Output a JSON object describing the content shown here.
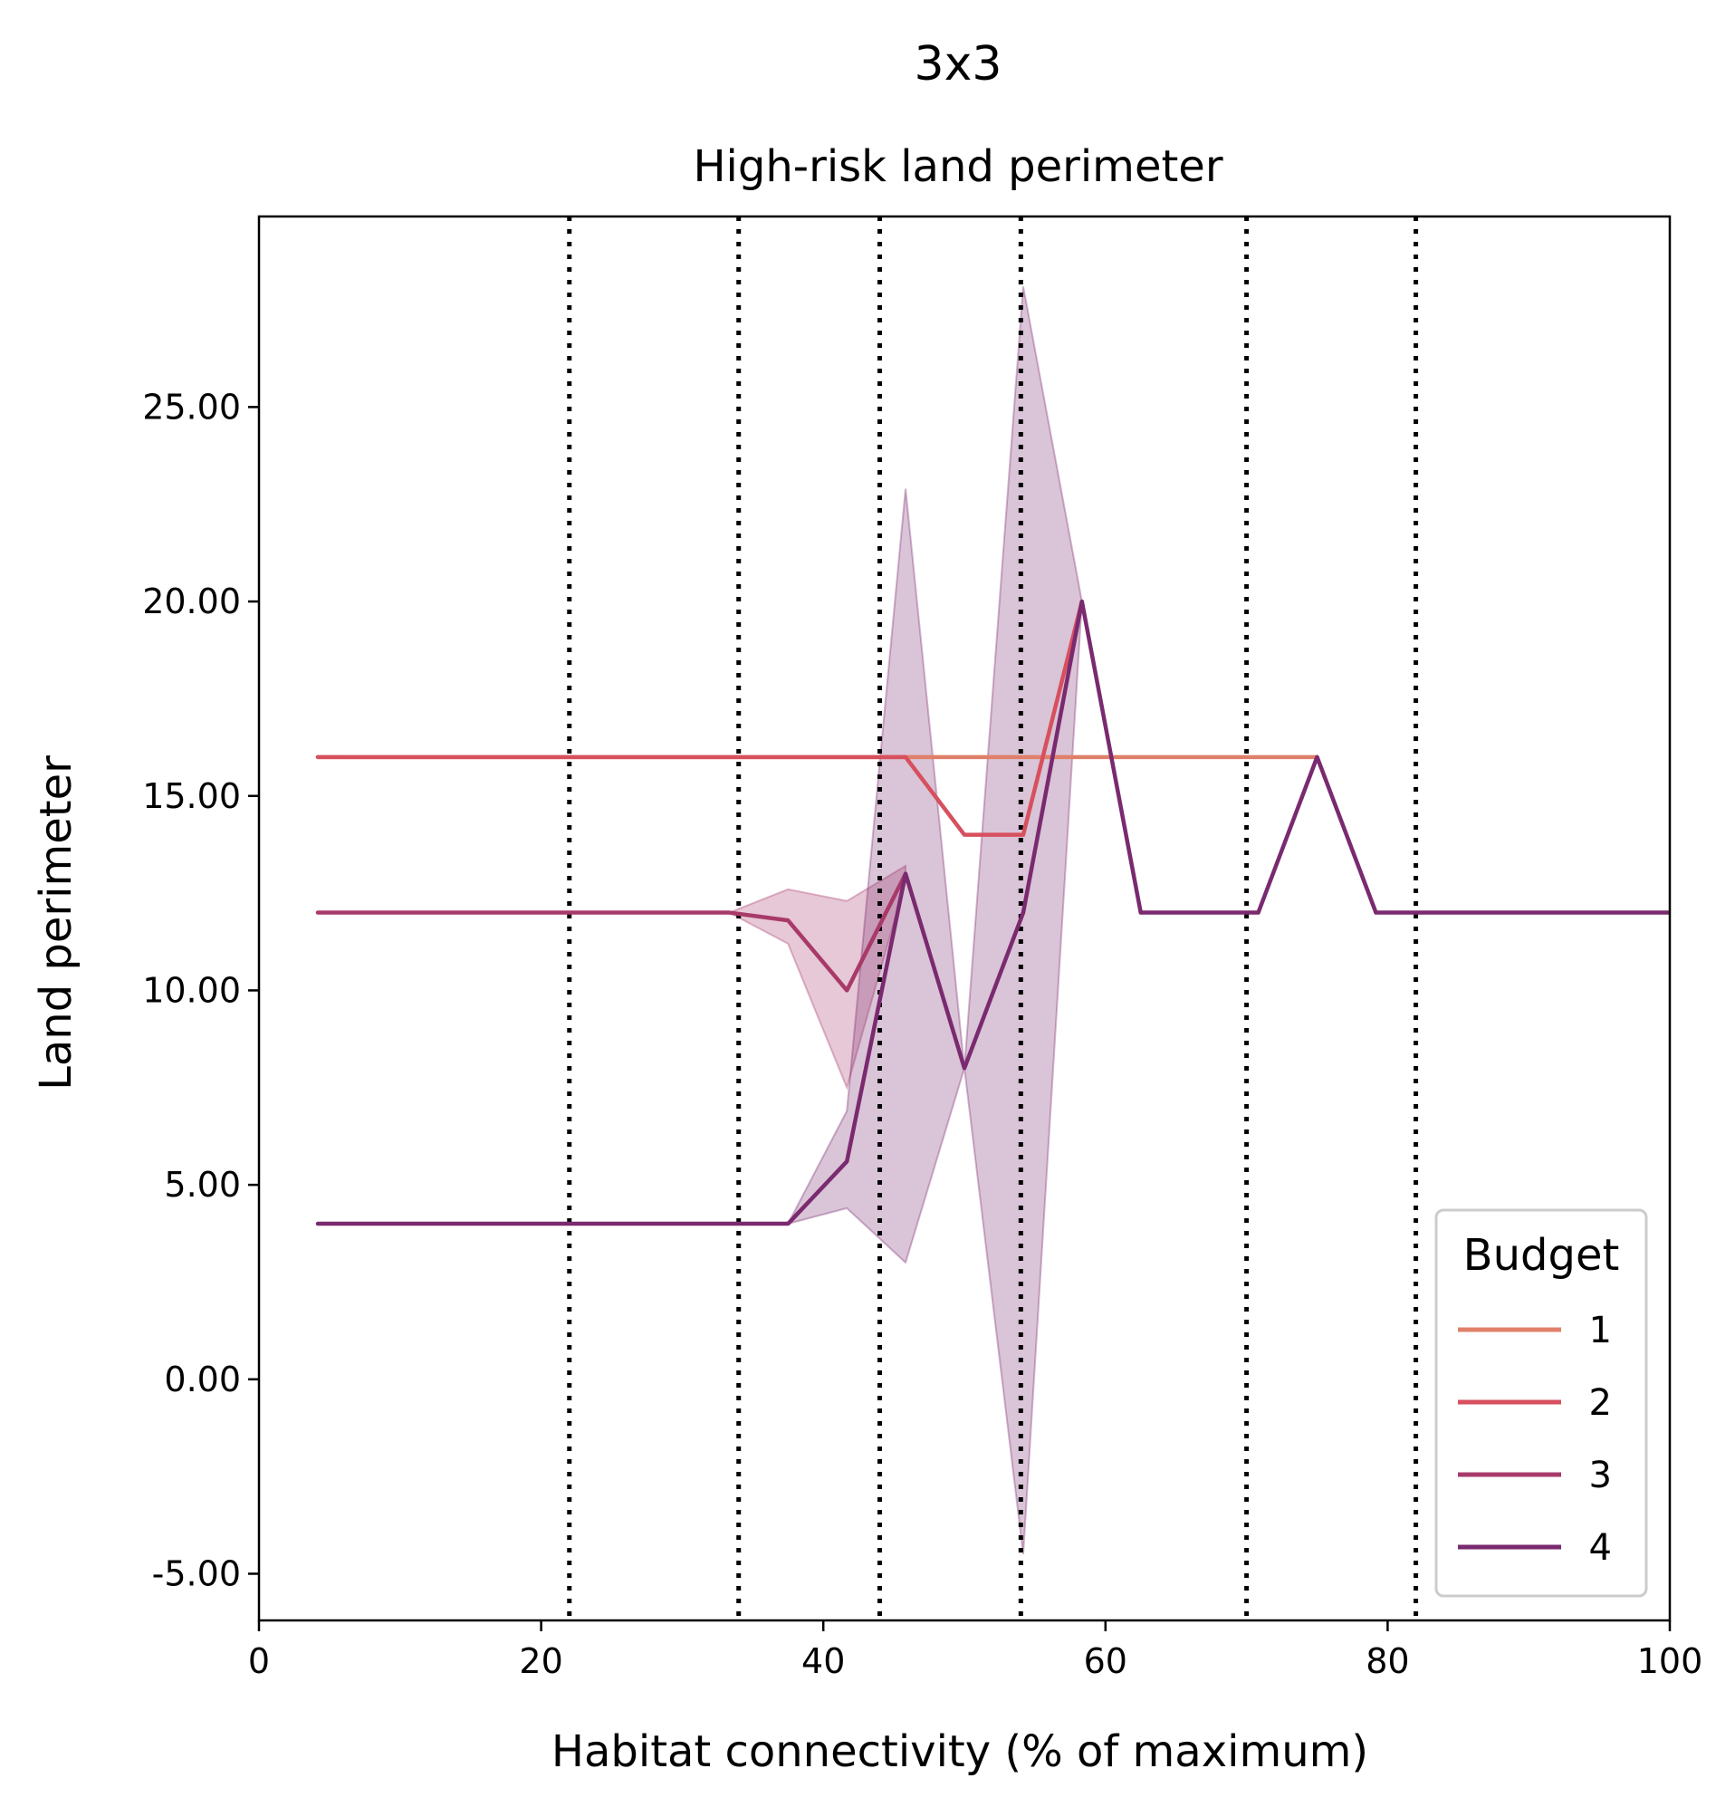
{
  "figure_title": "3x3",
  "chart_data": {
    "type": "line",
    "title": "High-risk land perimeter",
    "xlabel": "Habitat connectivity (% of maximum)",
    "ylabel": "Land perimeter",
    "xlim": [
      0,
      100
    ],
    "ylim": [
      -6.2,
      29.9
    ],
    "xticks": [
      0,
      20,
      40,
      60,
      80,
      100
    ],
    "xtick_labels": [
      "0",
      "20",
      "40",
      "60",
      "80",
      "100"
    ],
    "yticks": [
      -5,
      0,
      5,
      10,
      15,
      20,
      25
    ],
    "ytick_labels": [
      "-5.00",
      "0.00",
      "5.00",
      "10.00",
      "15.00",
      "20.00",
      "25.00"
    ],
    "grid": false,
    "vlines": [
      22,
      34,
      44,
      54,
      70,
      82
    ],
    "vline_style": "dotted",
    "legend": {
      "title": "Budget",
      "position": "lower-right"
    },
    "series": [
      {
        "name": "1",
        "color": "#e0806a",
        "x": [
          4.17,
          8.33,
          12.5,
          16.67,
          20.83,
          25,
          29.17,
          33.33,
          37.5,
          41.67,
          45.83,
          50,
          54.17,
          58.33,
          62.5,
          66.67,
          70.83,
          75
        ],
        "y": [
          16,
          16,
          16,
          16,
          16,
          16,
          16,
          16,
          16,
          16,
          16,
          16,
          16,
          16,
          16,
          16,
          16,
          16
        ]
      },
      {
        "name": "2",
        "color": "#d7505f",
        "x": [
          4.17,
          8.33,
          12.5,
          16.67,
          20.83,
          25,
          29.17,
          33.33,
          37.5,
          41.67,
          45.83,
          50,
          54.17,
          58.33
        ],
        "y": [
          16,
          16,
          16,
          16,
          16,
          16,
          16,
          16,
          16,
          16,
          16,
          14,
          14,
          20
        ]
      },
      {
        "name": "3",
        "color": "#a83a6a",
        "x": [
          4.17,
          8.33,
          12.5,
          16.67,
          20.83,
          25,
          29.17,
          33.33,
          37.5,
          41.67,
          45.83
        ],
        "y": [
          12,
          12,
          12,
          12,
          12,
          12,
          12,
          12,
          11.8,
          10,
          13
        ],
        "band_x": [
          33.33,
          37.5,
          41.67,
          45.83
        ],
        "band_low": [
          12,
          11.2,
          7.5,
          12.8
        ],
        "band_high": [
          12,
          12.6,
          12.3,
          13.2
        ]
      },
      {
        "name": "4",
        "color": "#7a2a6f",
        "x": [
          4.17,
          8.33,
          12.5,
          16.67,
          20.83,
          25,
          29.17,
          33.33,
          37.5,
          41.67,
          45.83,
          50,
          54.17,
          58.33,
          62.5,
          66.67,
          70.83,
          75,
          79.17,
          83.33,
          87.5,
          91.67,
          95.83,
          100
        ],
        "y": [
          4,
          4,
          4,
          4,
          4,
          4,
          4,
          4,
          4,
          5.6,
          13,
          8,
          12,
          20,
          12,
          12,
          12,
          16,
          12,
          12,
          12,
          12,
          12,
          12
        ],
        "band_x": [
          37.5,
          41.67,
          45.83,
          50,
          54.17,
          58.33
        ],
        "band_low": [
          4,
          4.4,
          3,
          8,
          -4.5,
          20
        ],
        "band_high": [
          4,
          6.9,
          22.9,
          8,
          28.1,
          20
        ]
      }
    ]
  }
}
